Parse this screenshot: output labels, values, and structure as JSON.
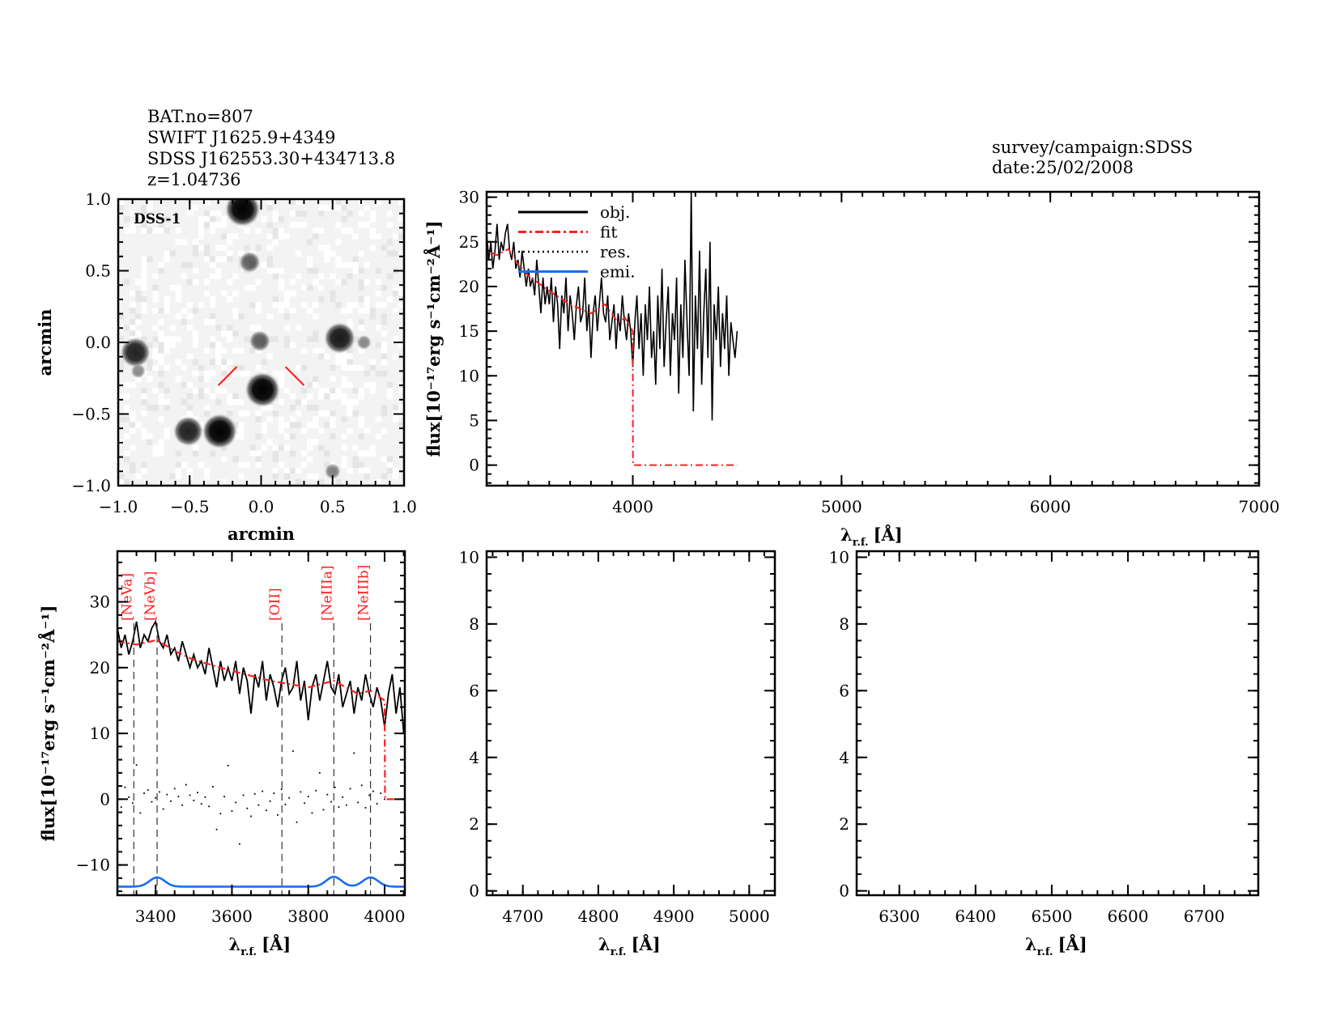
{
  "header": {
    "left_lines": [
      "BAT.no=807",
      "SWIFT J1625.9+4349",
      "SDSS J162553.30+434713.8",
      "z=1.04736"
    ],
    "right_lines": [
      "survey/campaign:SDSS",
      "date:25/02/2008"
    ]
  },
  "colors": {
    "obj": "#000000",
    "fit": "#ff2020",
    "res": "#000000",
    "emi": "#1a6ef0",
    "marker": "#ff2020"
  },
  "chart_data": [
    {
      "type": "heatmap",
      "panel_label": "DSS-1",
      "xlabel": "arcmin",
      "ylabel": "arcmin",
      "xlim": [
        -1.0,
        1.0
      ],
      "ylim": [
        -1.0,
        1.0
      ],
      "xticks": [
        "-1.0",
        "-0.5",
        "0.0",
        "0.5",
        "1.0"
      ],
      "yticks": [
        "-1.0",
        "-0.5",
        "0.0",
        "0.5",
        "1.0"
      ],
      "sources": [
        {
          "x": -0.13,
          "y": 0.93,
          "brightness": 1.0
        },
        {
          "x": -0.08,
          "y": 0.56,
          "brightness": 0.45
        },
        {
          "x": -0.88,
          "y": -0.07,
          "brightness": 0.8
        },
        {
          "x": -0.86,
          "y": -0.2,
          "brightness": 0.2
        },
        {
          "x": -0.01,
          "y": 0.01,
          "brightness": 0.45
        },
        {
          "x": 0.55,
          "y": 0.03,
          "brightness": 0.85
        },
        {
          "x": 0.72,
          "y": 0.0,
          "brightness": 0.2
        },
        {
          "x": 0.01,
          "y": -0.33,
          "brightness": 1.0
        },
        {
          "x": -0.51,
          "y": -0.62,
          "brightness": 0.8
        },
        {
          "x": -0.29,
          "y": -0.62,
          "brightness": 1.0
        },
        {
          "x": 0.5,
          "y": -0.9,
          "brightness": 0.25
        }
      ],
      "target_marker": [
        [
          [
            -0.3,
            -0.3
          ],
          [
            -0.17,
            -0.17
          ]
        ],
        [
          [
            0.17,
            -0.17
          ],
          [
            0.3,
            -0.3
          ]
        ]
      ]
    },
    {
      "type": "line",
      "xlabel": {
        "symbol": "λ",
        "sub": "r.f.",
        "unit": "[Å]"
      },
      "ylabel": "flux[10⁻¹⁷erg s⁻¹cm⁻²Å⁻¹]",
      "xlim": [
        3300,
        7000
      ],
      "ylim": [
        -2.3,
        30.6
      ],
      "xticks": [
        4000,
        5000,
        6000,
        7000
      ],
      "yticks": [
        0,
        5,
        10,
        15,
        20,
        25,
        30
      ],
      "legend": {
        "position": "top-left",
        "entries": [
          "obj.",
          "fit",
          "res.",
          "emi."
        ]
      },
      "obj": {
        "x_start": 3300,
        "x_step": 10,
        "y": [
          26,
          23,
          25,
          22,
          24,
          27,
          23,
          25,
          24,
          26,
          27,
          24,
          23,
          25,
          22,
          23,
          21,
          24,
          22,
          20,
          22,
          20,
          21,
          19,
          23,
          20,
          17,
          21,
          18,
          20,
          18,
          21,
          16,
          20,
          18,
          13,
          19,
          17,
          21,
          15,
          19,
          17,
          14,
          18,
          20,
          16,
          17,
          21,
          15,
          18,
          12,
          17,
          19,
          15,
          18,
          21,
          17,
          16,
          19,
          14,
          16,
          18,
          13,
          17,
          15,
          19,
          16,
          14,
          17,
          15,
          11,
          16,
          19,
          13,
          17,
          10,
          18,
          14,
          20,
          12,
          15,
          9,
          19,
          13,
          22,
          11,
          16,
          20,
          10,
          17,
          14,
          21,
          8,
          18,
          12,
          23,
          16,
          10,
          31,
          6,
          19,
          13,
          24,
          9,
          17,
          22,
          12,
          25,
          5,
          18,
          14,
          20,
          11,
          17,
          13,
          19,
          10,
          16,
          14,
          12,
          15
        ]
      },
      "fit": [
        [
          3300,
          16
        ],
        [
          3301,
          24
        ],
        [
          3350,
          23.5
        ],
        [
          3404,
          24.2
        ],
        [
          3450,
          22.5
        ],
        [
          3500,
          21.2
        ],
        [
          3600,
          19.5
        ],
        [
          3700,
          18
        ],
        [
          3800,
          17
        ],
        [
          3867,
          18
        ],
        [
          3930,
          16
        ],
        [
          3963,
          16.5
        ],
        [
          4000,
          15
        ],
        [
          4001,
          0
        ],
        [
          4500,
          0
        ]
      ]
    },
    {
      "type": "line",
      "xlabel": {
        "symbol": "λ",
        "sub": "r.f.",
        "unit": "[Å]"
      },
      "ylabel": "flux[10⁻¹⁷erg s⁻¹cm⁻²Å⁻¹]",
      "xlim": [
        3300,
        4053
      ],
      "ylim": [
        -14.6,
        37.7
      ],
      "xticks": [
        3400,
        3600,
        3800,
        4000
      ],
      "yticks": [
        -10,
        0,
        10,
        20,
        30
      ],
      "lines": [
        {
          "label": "[NeVa]",
          "x": 3343
        },
        {
          "label": "[NeVb]",
          "x": 3404
        },
        {
          "label": "[OII]",
          "x": 3731
        },
        {
          "label": "[NeIIIa]",
          "x": 3867
        },
        {
          "label": "[NeIIIb]",
          "x": 3963
        }
      ],
      "residuals": {
        "x_start": 3300,
        "x_step": 10,
        "y": [
          0.5,
          -1.2,
          1.8,
          0.3,
          -0.6,
          5.2,
          -2.1,
          0.9,
          1.4,
          -0.4,
          0.2,
          1.1,
          -1.5,
          0.7,
          -0.3,
          1.6,
          0.4,
          -0.9,
          2.2,
          0.6,
          -0.2,
          1.0,
          -0.7,
          0.3,
          -1.1,
          1.9,
          -4.6,
          -2.2,
          0.4,
          5.1,
          -1.8,
          -0.5,
          -6.8,
          0.6,
          -1.4,
          -2.6,
          0.8,
          -0.9,
          1.2,
          -1.7,
          -0.3,
          0.9,
          -2.4,
          1.5,
          -0.8,
          0.2,
          7.3,
          -3.5,
          1.1,
          -0.6,
          0.4,
          -2.1,
          1.3,
          4.0,
          -1.6,
          0.7,
          -0.4,
          1.8,
          -1.2,
          0.3,
          -0.9,
          1.6,
          7.0,
          -0.5,
          2.1,
          -1.3,
          0.6,
          1.2,
          -0.7,
          0.9,
          0.0
        ]
      },
      "emission": {
        "baseline": -13.3,
        "components": [
          {
            "center": 3404,
            "amplitude": 1.4,
            "sigma": 20
          },
          {
            "center": 3867,
            "amplitude": 1.5,
            "sigma": 20
          },
          {
            "center": 3963,
            "amplitude": 1.4,
            "sigma": 20
          }
        ]
      }
    },
    {
      "type": "line",
      "xlabel": {
        "symbol": "λ",
        "sub": "r.f.",
        "unit": "[Å]"
      },
      "xlim": [
        4652,
        5034
      ],
      "ylim": [
        -0.13,
        10.18
      ],
      "xticks": [
        4700,
        4800,
        4900,
        5000
      ],
      "yticks": [
        0,
        2,
        4,
        6,
        8,
        10
      ]
    },
    {
      "type": "line",
      "xlabel": {
        "symbol": "λ",
        "sub": "r.f.",
        "unit": "[Å]"
      },
      "xlim": [
        6244,
        6771
      ],
      "ylim": [
        -0.13,
        10.18
      ],
      "xticks": [
        6300,
        6400,
        6500,
        6600,
        6700
      ],
      "yticks": [
        0,
        2,
        4,
        6,
        8,
        10
      ]
    }
  ]
}
